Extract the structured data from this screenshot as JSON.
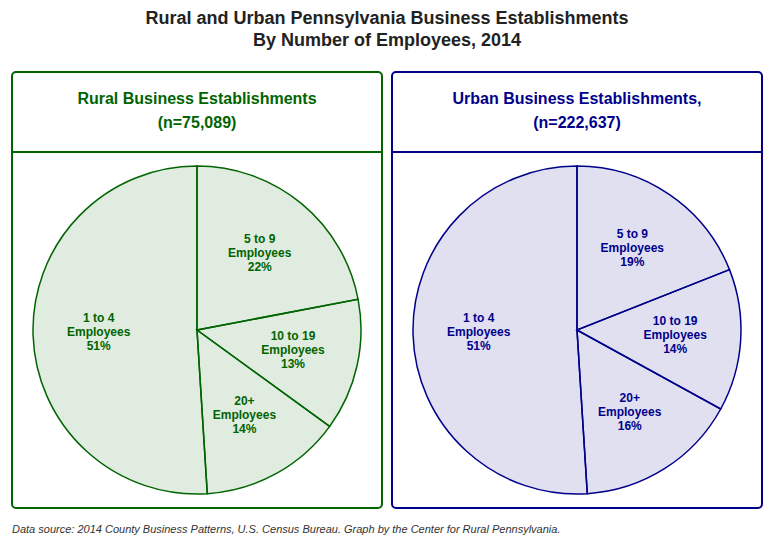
{
  "title": "Rural and Urban Pennsylvania Business Establishments\nBy Number of Employees, 2014",
  "annotations": [
    "Data source: 2014 County Business Patterns, U.S. Census Bureau. Graph by the Center for Rural Pennsylvania."
  ],
  "chart_data": [
    {
      "type": "pie",
      "title": "Rural Business Establishments",
      "subtitle": "(n=75,089)",
      "color": "#006400",
      "categories": [
        "5 to 9\nEmployees",
        "10 to 19\nEmployees",
        "20+\nEmployees",
        "1 to 4\nEmployees"
      ],
      "values": [
        22,
        13,
        14,
        51
      ],
      "value_labels": [
        "22%",
        "13%",
        "14%",
        "51%"
      ],
      "data_labels": true
    },
    {
      "type": "pie",
      "title": "Urban Business Establishments,",
      "subtitle": "(n=222,637)",
      "color": "#00008B",
      "categories": [
        "5 to 9\nEmployees",
        "10 to 19\nEmployees",
        "20+\nEmployees",
        "1 to 4\nEmployees"
      ],
      "values": [
        19,
        14,
        16,
        51
      ],
      "value_labels": [
        "19%",
        "14%",
        "16%",
        "51%"
      ],
      "data_labels": true
    }
  ]
}
